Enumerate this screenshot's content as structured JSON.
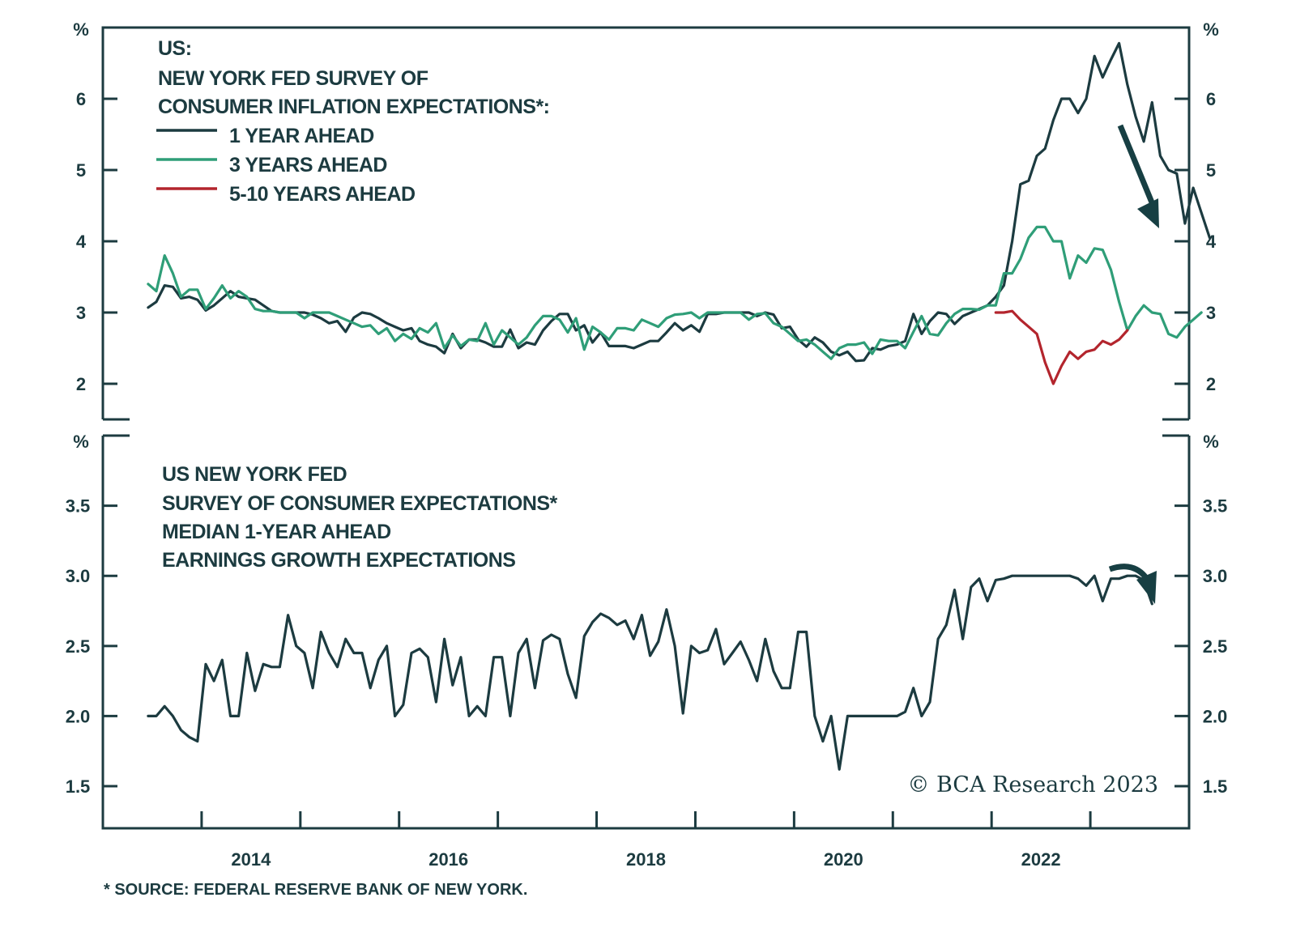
{
  "chart_data": [
    {
      "type": "line",
      "panel": "top",
      "title_lines": [
        "US:",
        "NEW YORK FED SURVEY OF",
        "CONSUMER INFLATION EXPECTATIONS*:"
      ],
      "ylabel": "%",
      "ylim": [
        1.5,
        7
      ],
      "yticks": [
        2,
        3,
        4,
        5,
        6
      ],
      "xlim": [
        2013.0,
        2024.0
      ],
      "legend_position": "top-left",
      "series": [
        {
          "name": "1 YEAR AHEAD",
          "color": "#1c3b40",
          "start": "2013-06",
          "values": [
            3.07,
            3.15,
            3.38,
            3.36,
            3.2,
            3.22,
            3.18,
            3.03,
            3.1,
            3.2,
            3.3,
            3.22,
            3.2,
            3.18,
            3.1,
            3.02,
            3.0,
            3.0,
            3.0,
            3.0,
            2.97,
            2.92,
            2.85,
            2.88,
            2.73,
            2.93,
            3.0,
            2.98,
            2.92,
            2.85,
            2.8,
            2.75,
            2.78,
            2.6,
            2.55,
            2.52,
            2.43,
            2.7,
            2.5,
            2.62,
            2.62,
            2.58,
            2.52,
            2.52,
            2.76,
            2.5,
            2.58,
            2.55,
            2.75,
            2.88,
            2.98,
            2.98,
            2.75,
            2.82,
            2.58,
            2.72,
            2.53,
            2.53,
            2.53,
            2.5,
            2.55,
            2.6,
            2.6,
            2.72,
            2.85,
            2.75,
            2.82,
            2.73,
            2.98,
            2.98,
            3.0,
            3.0,
            3.0,
            3.0,
            2.95,
            3.0,
            2.97,
            2.78,
            2.8,
            2.62,
            2.52,
            2.65,
            2.58,
            2.45,
            2.4,
            2.45,
            2.32,
            2.33,
            2.5,
            2.48,
            2.53,
            2.55,
            2.6,
            2.98,
            2.7,
            2.88,
            3.0,
            2.98,
            2.84,
            2.95,
            3.0,
            3.05,
            3.1,
            3.22,
            3.38,
            4.0,
            4.8,
            4.85,
            5.2,
            5.3,
            5.7,
            6.0,
            6.0,
            5.8,
            6.0,
            6.6,
            6.3,
            6.55,
            6.78,
            6.2,
            5.75,
            5.4,
            5.95,
            5.2,
            5.0,
            4.95,
            4.25,
            4.75,
            4.4,
            4.05
          ]
        },
        {
          "name": "3 YEARS AHEAD",
          "color": "#2f9e78",
          "start": "2013-06",
          "values": [
            3.4,
            3.3,
            3.8,
            3.55,
            3.22,
            3.32,
            3.32,
            3.05,
            3.2,
            3.38,
            3.2,
            3.3,
            3.22,
            3.05,
            3.02,
            3.02,
            3.0,
            3.0,
            3.0,
            2.92,
            3.0,
            3.0,
            3.0,
            2.95,
            2.9,
            2.85,
            2.8,
            2.82,
            2.7,
            2.78,
            2.6,
            2.7,
            2.63,
            2.78,
            2.72,
            2.85,
            2.5,
            2.68,
            2.53,
            2.62,
            2.6,
            2.85,
            2.55,
            2.75,
            2.65,
            2.55,
            2.65,
            2.82,
            2.95,
            2.95,
            2.9,
            2.72,
            2.92,
            2.48,
            2.8,
            2.72,
            2.62,
            2.78,
            2.78,
            2.75,
            2.9,
            2.85,
            2.8,
            2.92,
            2.97,
            2.98,
            3.0,
            2.92,
            3.0,
            3.0,
            3.0,
            3.0,
            3.0,
            2.9,
            2.98,
            2.99,
            2.85,
            2.8,
            2.7,
            2.6,
            2.62,
            2.55,
            2.45,
            2.35,
            2.5,
            2.55,
            2.55,
            2.58,
            2.42,
            2.62,
            2.6,
            2.6,
            2.5,
            2.73,
            2.95,
            2.7,
            2.68,
            2.85,
            2.98,
            3.05,
            3.05,
            3.04,
            3.1,
            3.1,
            3.55,
            3.55,
            3.75,
            4.05,
            4.2,
            4.2,
            4.0,
            4.0,
            3.48,
            3.8,
            3.7,
            3.9,
            3.88,
            3.6,
            3.15,
            2.75,
            2.95,
            3.1,
            3.0,
            2.98,
            2.7,
            2.65,
            2.8,
            2.9,
            3.0
          ]
        },
        {
          "name": "5-10 YEARS AHEAD",
          "color": "#b3252d",
          "start": "2022-01",
          "values": [
            3.0,
            3.0,
            3.02,
            2.9,
            2.8,
            2.7,
            2.3,
            2.0,
            2.25,
            2.45,
            2.35,
            2.45,
            2.48,
            2.6,
            2.55,
            2.62,
            2.75
          ]
        }
      ],
      "annotations": [
        "downward-arrow"
      ]
    },
    {
      "type": "line",
      "panel": "bottom",
      "title_lines": [
        "US NEW YORK FED",
        "SURVEY OF CONSUMER EXPECTATIONS*",
        "MEDIAN 1-YEAR AHEAD",
        "EARNINGS GROWTH EXPECTATIONS"
      ],
      "ylabel": "%",
      "ylim": [
        1.2,
        4.0
      ],
      "yticks": [
        "1.5",
        "2.0",
        "2.5",
        "3.0",
        "3.5"
      ],
      "xlim": [
        2013.0,
        2024.0
      ],
      "xticks": [
        "2014",
        "2016",
        "2018",
        "2020",
        "2022"
      ],
      "series": [
        {
          "name": "MEDIAN 1-YEAR AHEAD EARNINGS GROWTH EXPECTATIONS",
          "color": "#1c3b40",
          "start": "2013-06",
          "values": [
            2.0,
            2.0,
            2.07,
            2.0,
            1.9,
            1.85,
            1.82,
            2.37,
            2.25,
            2.4,
            2.0,
            2.0,
            2.45,
            2.18,
            2.37,
            2.35,
            2.35,
            2.72,
            2.5,
            2.45,
            2.2,
            2.6,
            2.45,
            2.35,
            2.55,
            2.45,
            2.45,
            2.2,
            2.4,
            2.5,
            2.0,
            2.08,
            2.45,
            2.48,
            2.42,
            2.1,
            2.55,
            2.22,
            2.42,
            2.0,
            2.07,
            2.0,
            2.42,
            2.42,
            2.0,
            2.45,
            2.55,
            2.2,
            2.54,
            2.58,
            2.55,
            2.3,
            2.13,
            2.57,
            2.67,
            2.73,
            2.7,
            2.65,
            2.68,
            2.55,
            2.72,
            2.43,
            2.53,
            2.76,
            2.5,
            2.02,
            2.5,
            2.45,
            2.47,
            2.62,
            2.37,
            2.45,
            2.53,
            2.4,
            2.25,
            2.55,
            2.32,
            2.2,
            2.2,
            2.6,
            2.6,
            2.0,
            1.82,
            2.0,
            1.62,
            2.0,
            2.0,
            2.0,
            2.0,
            2.0,
            2.0,
            2.0,
            2.03,
            2.2,
            2.0,
            2.1,
            2.55,
            2.65,
            2.9,
            2.55,
            2.92,
            2.98,
            2.82,
            2.97,
            2.98,
            3.0,
            3.0,
            3.0,
            3.0,
            3.0,
            3.0,
            3.0,
            3.0,
            2.98,
            2.93,
            3.0,
            2.82,
            2.98,
            2.98,
            3.0,
            3.0,
            2.97,
            2.8
          ]
        }
      ],
      "annotations": [
        "curved-downward-arrow"
      ]
    }
  ],
  "legend": [
    {
      "label": "1 YEAR AHEAD",
      "color": "#1c3b40"
    },
    {
      "label": "3 YEARS AHEAD",
      "color": "#2f9e78"
    },
    {
      "label": "5-10 YEARS AHEAD",
      "color": "#b3252d"
    }
  ],
  "top_panel": {
    "title_lines": [
      "US:",
      "NEW YORK FED SURVEY OF",
      "CONSUMER INFLATION EXPECTATIONS*:"
    ],
    "unit_label": "%",
    "yticks": [
      "2",
      "3",
      "4",
      "5",
      "6"
    ]
  },
  "bottom_panel": {
    "title_lines": [
      "US NEW YORK FED",
      "SURVEY OF CONSUMER EXPECTATIONS*",
      "MEDIAN 1-YEAR AHEAD",
      "EARNINGS GROWTH EXPECTATIONS"
    ],
    "unit_label": "%",
    "yticks": [
      "1.5",
      "2.0",
      "2.5",
      "3.0",
      "3.5"
    ]
  },
  "xticks": [
    "2014",
    "2016",
    "2018",
    "2020",
    "2022"
  ],
  "copyright": "© BCA Research 2023",
  "footnote": "*  SOURCE: FEDERAL RESERVE BANK OF NEW YORK."
}
